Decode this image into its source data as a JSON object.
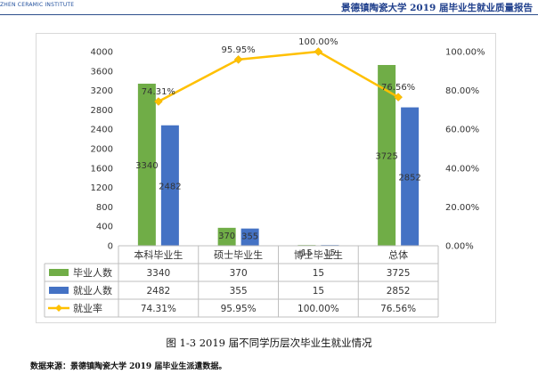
{
  "header": {
    "logo_text": "ZHEN CERAMIC INSTITUTE",
    "title": "景德镇陶瓷大学 2019 届毕业生就业质量报告"
  },
  "chart_data": {
    "type": "bar",
    "categories": [
      "本科毕业生",
      "硕士毕业生",
      "博士毕业生",
      "总体"
    ],
    "series": [
      {
        "name": "毕业人数",
        "type": "bar",
        "axis": "left",
        "values": [
          3340,
          370,
          15,
          3725
        ],
        "labels": [
          "3340",
          "370",
          "15",
          "3725"
        ],
        "color": "#70ad47"
      },
      {
        "name": "就业人数",
        "type": "bar",
        "axis": "left",
        "values": [
          2482,
          355,
          15,
          2852
        ],
        "labels": [
          "2482",
          "355",
          "15",
          "2852"
        ],
        "color": "#4472c4"
      },
      {
        "name": "就业率",
        "type": "line",
        "axis": "right",
        "values": [
          74.31,
          95.95,
          100.0,
          76.56
        ],
        "labels": [
          "74.31%",
          "95.95%",
          "100.00%",
          "76.56%"
        ],
        "color": "#ffc000"
      }
    ],
    "y_left": {
      "min": 0,
      "max": 4000,
      "ticks": [
        "0",
        "400",
        "800",
        "1200",
        "1600",
        "2000",
        "2400",
        "2800",
        "3200",
        "3600",
        "4000"
      ]
    },
    "y_right": {
      "min": 0,
      "max": 100,
      "ticks": [
        "0.00%",
        "20.00%",
        "40.00%",
        "60.00%",
        "80.00%",
        "100.00%"
      ]
    },
    "grid": false,
    "legend": "data-table"
  },
  "caption": "图 1-3   2019 届不同学历层次毕业生就业情况",
  "source": "数据来源：景德镇陶瓷大学 2019 届毕业生派遣数据。"
}
